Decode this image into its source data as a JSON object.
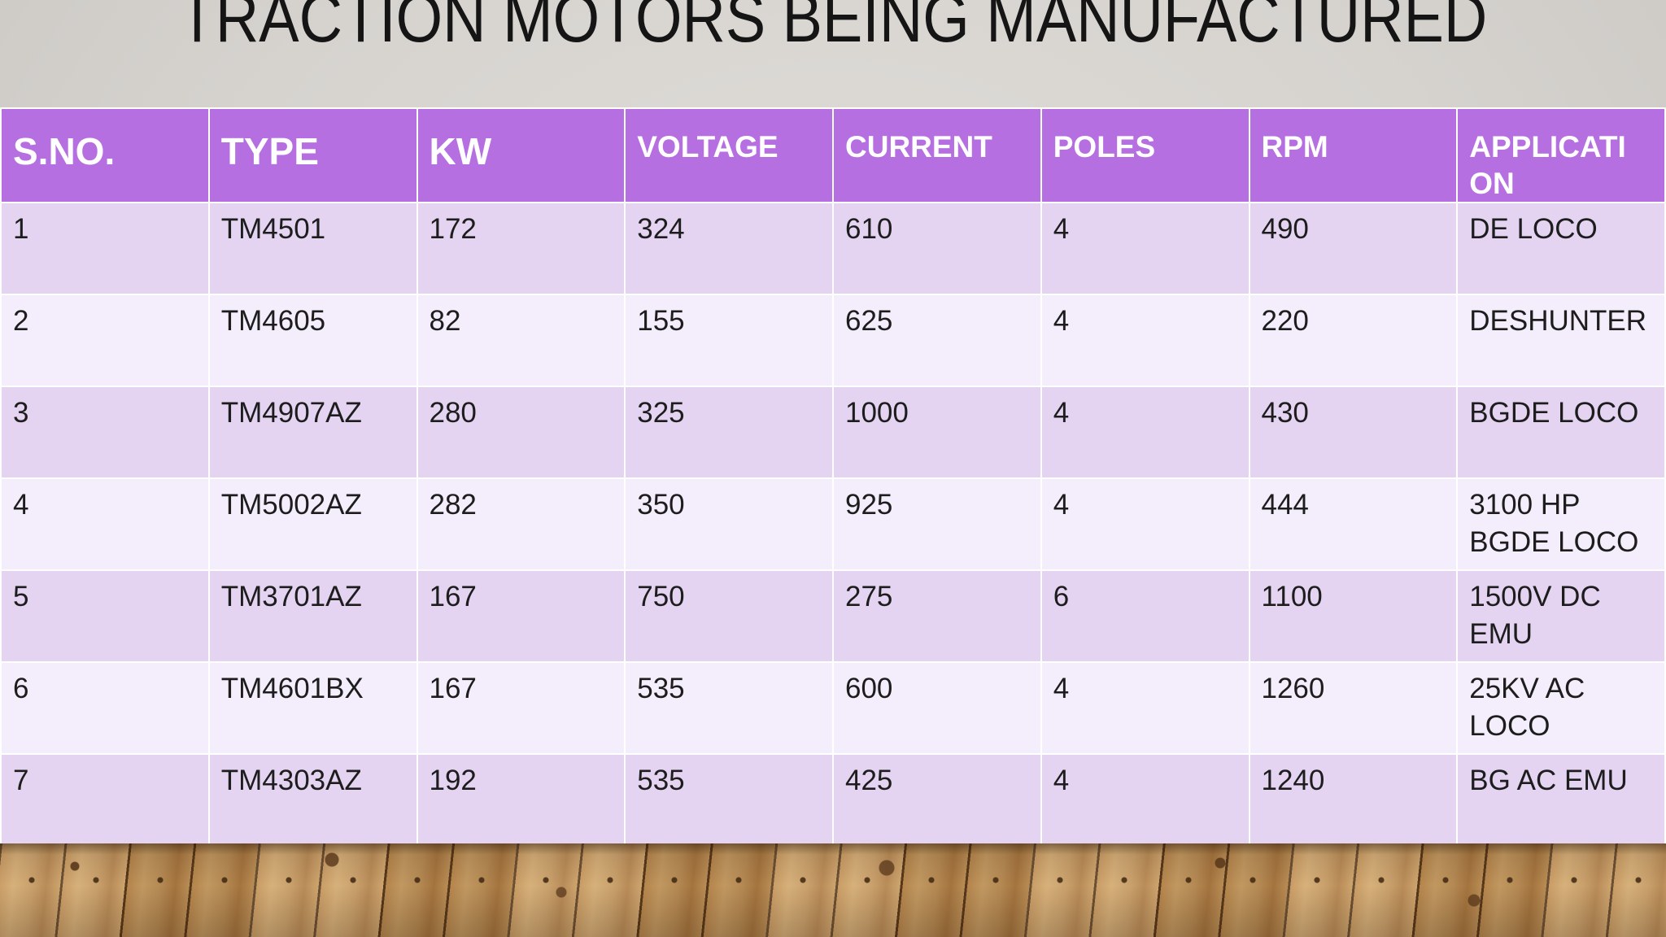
{
  "slide": {
    "title": "TRACTION MOTORS BEING MANUFACTURED"
  },
  "table": {
    "columns": [
      {
        "key": "sno",
        "label": "S.NO.",
        "size": "lg"
      },
      {
        "key": "type",
        "label": "TYPE",
        "size": "lg"
      },
      {
        "key": "kw",
        "label": "KW",
        "size": "lg"
      },
      {
        "key": "voltage",
        "label": "VOLTAGE",
        "size": "sm"
      },
      {
        "key": "current",
        "label": "CURRENT",
        "size": "sm"
      },
      {
        "key": "poles",
        "label": "POLES",
        "size": "sm"
      },
      {
        "key": "rpm",
        "label": "RPM",
        "size": "sm"
      },
      {
        "key": "application",
        "label": "APPLICATI\nON",
        "size": "sm"
      }
    ],
    "rows": [
      [
        "1",
        "TM4501",
        "172",
        "324",
        "610",
        "4",
        "490",
        "DE LOCO"
      ],
      [
        "2",
        "TM4605",
        "82",
        "155",
        "625",
        "4",
        "220",
        "DESHUNTER"
      ],
      [
        "3",
        "TM4907AZ",
        "280",
        "325",
        "1000",
        "4",
        "430",
        "BGDE LOCO"
      ],
      [
        "4",
        "TM5002AZ",
        "282",
        "350",
        "925",
        "4",
        "444",
        "3100 HP\nBGDE LOCO"
      ],
      [
        "5",
        "TM3701AZ",
        "167",
        "750",
        "275",
        "6",
        "1100",
        "1500V DC\nEMU"
      ],
      [
        "6",
        "TM4601BX",
        "167",
        "535",
        "600",
        "4",
        "1260",
        "25KV AC\nLOCO"
      ],
      [
        "7",
        "TM4303AZ",
        "192",
        "535",
        "425",
        "4",
        "1240",
        "BG AC EMU"
      ]
    ]
  },
  "colors": {
    "header_bg": "#b66fe0",
    "row_odd_bg": "#e4d4f2",
    "row_even_bg": "#f4edfb",
    "grid_line": "#ffffff",
    "title_text": "#151515",
    "body_text": "#1d1d1d",
    "slide_bg": "#d6d3cf",
    "wood_plank": "#c39155",
    "wood_seam": "#57391c"
  }
}
